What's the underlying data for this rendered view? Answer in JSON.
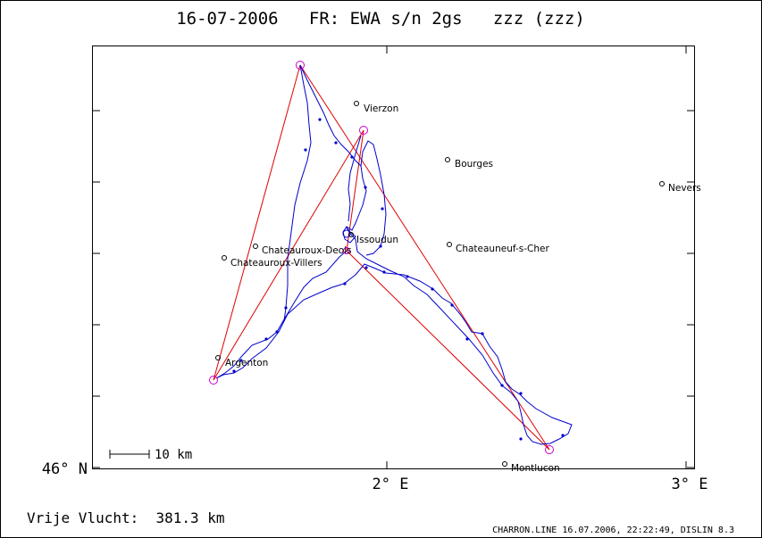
{
  "header": {
    "title": "16-07-2006   FR: EWA s/n 2gs   zzz (zzz)"
  },
  "axes": {
    "y_label": "46° N",
    "x_labels": [
      "2° E",
      "3° E"
    ]
  },
  "places": [
    {
      "name": "Vierzon"
    },
    {
      "name": "Bourges"
    },
    {
      "name": "Nevers"
    },
    {
      "name": "Issoudun"
    },
    {
      "name": "Chateauroux-Deols"
    },
    {
      "name": "Chateauroux-Villers"
    },
    {
      "name": "Chateauneuf-s-Cher"
    },
    {
      "name": "Argenton"
    },
    {
      "name": "Montlucon"
    }
  ],
  "scale_bar": {
    "label": "10 km"
  },
  "footer": {
    "distance": "Vrije Vlucht:  381.3 km",
    "credits": "CHARRON.LINE 16.07.2006, 22:22:49, DISLIN 8.3"
  },
  "colors": {
    "track": "#0000cc",
    "task_lines": "#dd0000",
    "turnpoints": "#cc00cc",
    "frame": "#000000"
  }
}
